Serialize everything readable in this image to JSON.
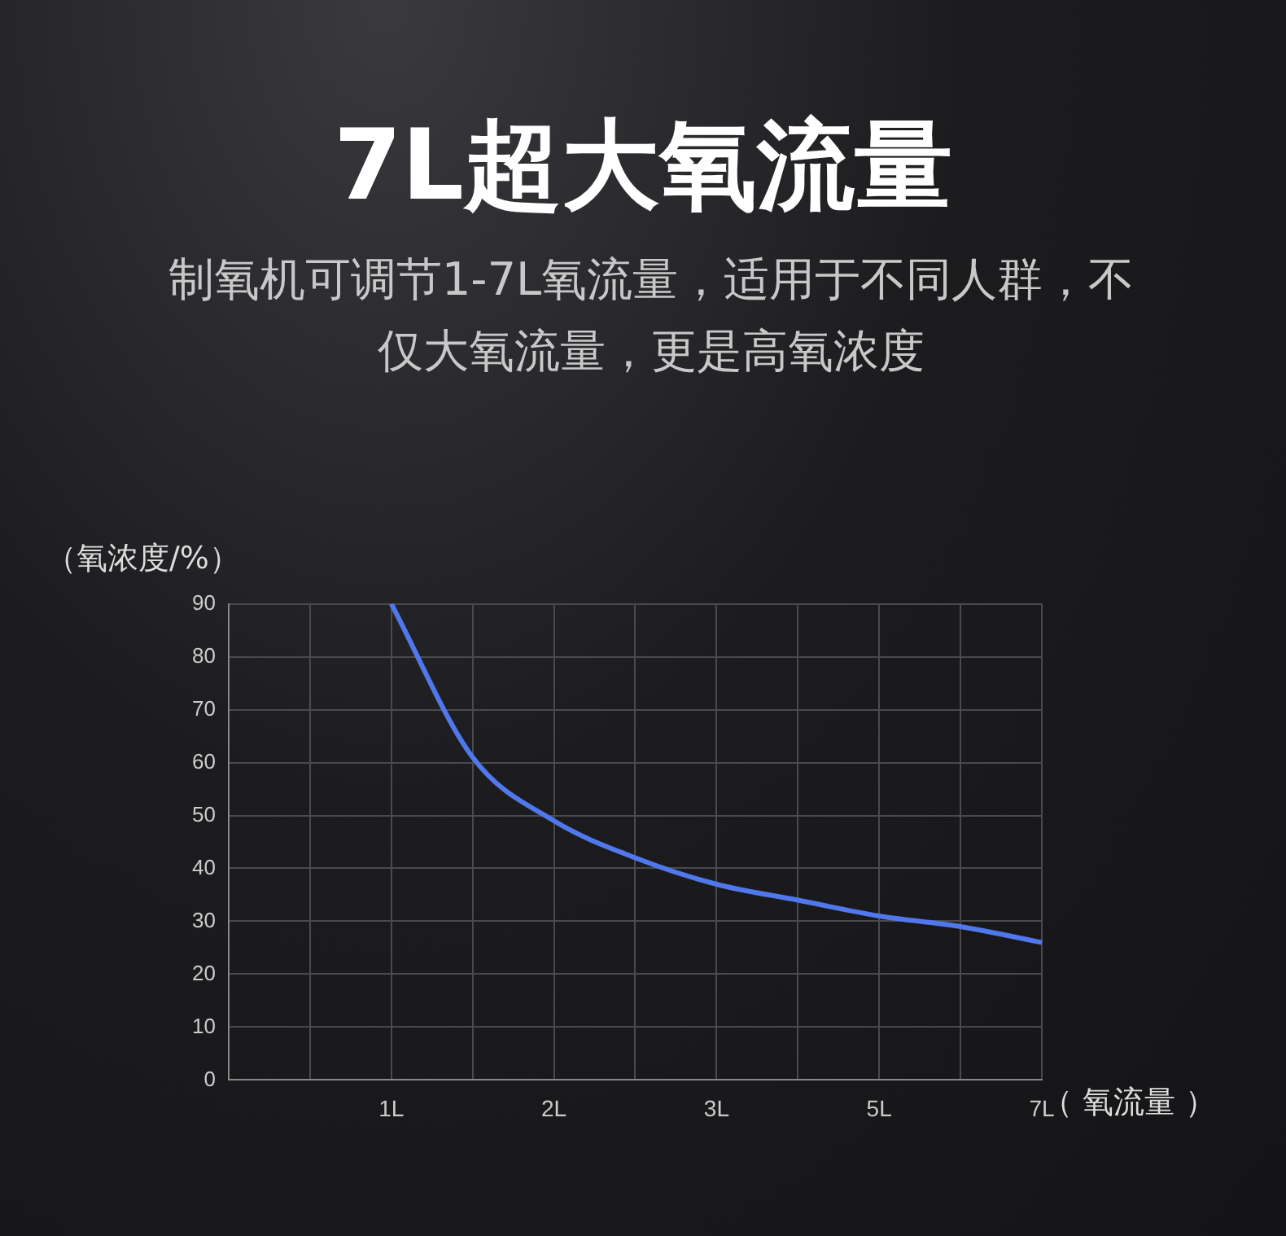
{
  "chart_data": {
    "type": "line",
    "title": "7L超大氧流量",
    "subtitle": "制氧机可调节1-7L氧流量，适用于不同人群，不仅大氧流量，更是高氧浓度",
    "xlabel": "（ 氧流量 ）",
    "ylabel": "（氧浓度/%）",
    "categories": [
      null,
      null,
      "1L",
      null,
      "2L",
      null,
      "3L",
      null,
      "5L",
      null,
      "7L"
    ],
    "series": [
      {
        "color": "#5078ec",
        "values": [
          null,
          null,
          90,
          61,
          49,
          42,
          37,
          34,
          31,
          29,
          26
        ]
      }
    ],
    "ylim": [
      0,
      90
    ],
    "yticks": [
      0,
      10,
      20,
      30,
      40,
      50,
      60,
      70,
      80,
      90
    ],
    "grid": true,
    "marker": "none",
    "line_style": "solid"
  }
}
